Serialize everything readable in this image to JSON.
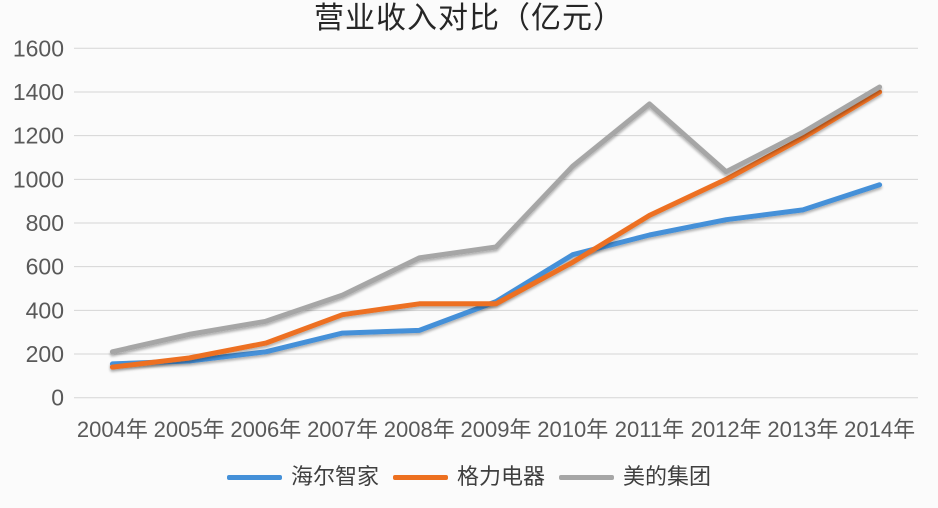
{
  "chart_data": {
    "type": "line",
    "title": "营业收入对比（亿元）",
    "xlabel": "",
    "ylabel": "",
    "categories": [
      "2004年",
      "2005年",
      "2006年",
      "2007年",
      "2008年",
      "2009年",
      "2010年",
      "2011年",
      "2012年",
      "2013年",
      "2014年"
    ],
    "series": [
      {
        "name": "海尔智家",
        "color": "#4490D8",
        "values": [
          155,
          168,
          210,
          296,
          308,
          440,
          655,
          745,
          815,
          860,
          975
        ]
      },
      {
        "name": "格力电器",
        "color": "#ED7020",
        "values": [
          140,
          182,
          250,
          380,
          430,
          430,
          620,
          835,
          1000,
          1190,
          1400
        ]
      },
      {
        "name": "美的集团",
        "color": "#A6A6A6",
        "values": [
          210,
          290,
          350,
          470,
          640,
          690,
          1060,
          1345,
          1035,
          1215,
          1423
        ]
      }
    ],
    "ylim": [
      0,
      1600
    ],
    "ytick_step": 200,
    "ytick_labels": [
      "0",
      "200",
      "400",
      "600",
      "800",
      "1000",
      "1200",
      "1400",
      "1600"
    ],
    "grid": true,
    "legend_position": "bottom"
  },
  "colors": {
    "background": "#FBFBFB",
    "gridline": "#D6D6D6",
    "axis_text": "#595959",
    "title_text": "#262626",
    "legend_text": "#3F3F3F"
  }
}
